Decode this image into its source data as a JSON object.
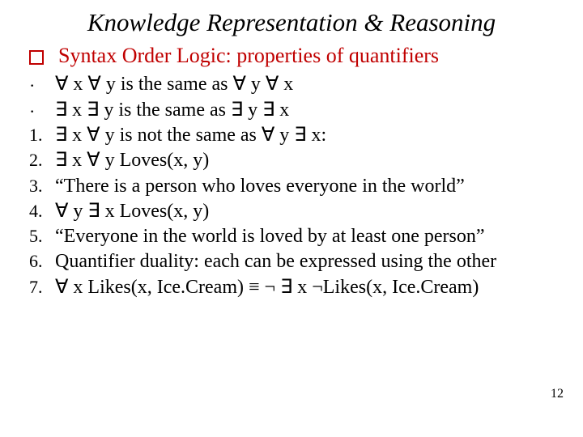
{
  "title": "Knowledge Representation & Reasoning",
  "heading": "Syntax Order Logic: properties of quantifiers",
  "heading_bullet_border_color": "#c00000",
  "heading_text_color": "#c00000",
  "text_color": "#000000",
  "background": "#ffffff",
  "title_fontsize": 31,
  "heading_fontsize": 26,
  "item_fontsize": 24,
  "items": [
    {
      "marker": "·",
      "marker_type": "dot",
      "text": "∀ x ∀ y is the same as ∀ y ∀ x"
    },
    {
      "marker": "·",
      "marker_type": "dot",
      "text": "∃ x ∃ y is the same as ∃ y ∃ x"
    },
    {
      "marker": "1.",
      "marker_type": "num",
      "text": "∃ x ∀ y is not the same as ∀ y ∃ x:"
    },
    {
      "marker": "2.",
      "marker_type": "num",
      "text": "∃ x ∀ y Loves(x, y)"
    },
    {
      "marker": "3.",
      "marker_type": "num",
      "text": "“There is a person who loves everyone in the world”"
    },
    {
      "marker": "4.",
      "marker_type": "num",
      "text": "∀ y ∃ x Loves(x, y)"
    },
    {
      "marker": "5.",
      "marker_type": "num",
      "text": "“Everyone in the world is loved by at least one person”"
    },
    {
      "marker": "6.",
      "marker_type": "num",
      "text": "Quantifier duality: each can be expressed using the other"
    },
    {
      "marker": "7.",
      "marker_type": "num",
      "text": "∀ x Likes(x, Ice.Cream) ≡ ¬ ∃ x ¬Likes(x, Ice.Cream)"
    }
  ],
  "page_number": "12"
}
